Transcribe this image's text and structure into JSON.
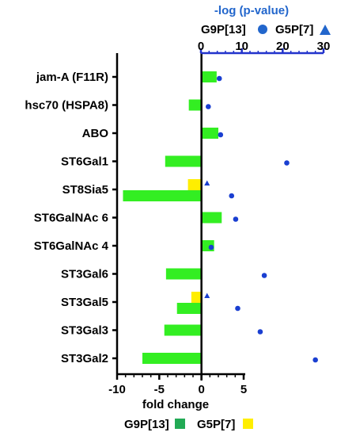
{
  "chart_data": {
    "type": "bar",
    "categories": [
      "jam-A (F11R)",
      "hsc70 (HSPA8)",
      "ABO",
      "ST6Gal1",
      "ST8Sia5",
      "ST6GalNAc 6",
      "ST6GalNAc 4",
      "ST3Gal6",
      "ST3Gal5",
      "ST3Gal3",
      "ST3Gal2"
    ],
    "series": [
      {
        "name": "G9P[13]",
        "color": "#33ee22",
        "values": [
          1.8,
          -1.5,
          2.0,
          -4.3,
          -9.3,
          2.4,
          1.5,
          -4.2,
          -2.9,
          -4.4,
          -7.0
        ]
      },
      {
        "name": "G5P[7]",
        "color": "#ffee00",
        "values": [
          null,
          null,
          null,
          null,
          -1.6,
          null,
          null,
          null,
          -1.2,
          null,
          null
        ]
      }
    ],
    "pvalue_series": [
      {
        "name": "G9P[13]",
        "marker": "circle",
        "color": "#1a3fd1",
        "values": [
          4.5,
          1.8,
          4.8,
          21.0,
          7.5,
          8.5,
          2.5,
          15.5,
          9.0,
          14.5,
          28.0
        ]
      },
      {
        "name": "G5P[7]",
        "marker": "triangle",
        "color": "#1a3fd1",
        "values": [
          null,
          null,
          null,
          null,
          1.5,
          null,
          null,
          null,
          1.5,
          null,
          null
        ]
      }
    ],
    "xlabel": "fold change",
    "x_ticks": [
      "-10",
      "-5",
      "0",
      "5"
    ],
    "xlim": [
      -10,
      5
    ],
    "top_axis_title": "-log (p-value)",
    "top_x_ticks": [
      "0",
      "10",
      "20",
      "30"
    ],
    "top_xlim": [
      0,
      30
    ],
    "top_legend": [
      {
        "label": "G9P[13]",
        "marker": "circle-icon",
        "color": "#2266cc"
      },
      {
        "label": "G5P[7]",
        "marker": "triangle-icon",
        "color": "#2266cc"
      }
    ],
    "bottom_legend": [
      {
        "label": "G9P[13]",
        "color": "#22aa55"
      },
      {
        "label": "G5P[7]",
        "color": "#ffee00"
      }
    ],
    "grid": false
  }
}
